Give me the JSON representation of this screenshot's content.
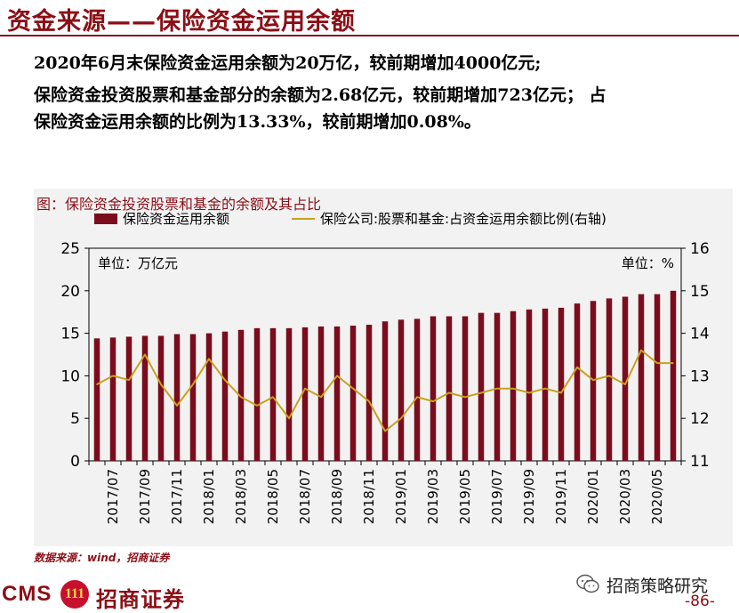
{
  "header": {
    "title": "资金来源——保险资金运用余额"
  },
  "summary": {
    "line1": "2020年6月末保险资金运用余额为20万亿，较前期增加4000亿元;",
    "line2": "保险资金投资股票和基金部分的余额为2.68亿元，较前期增加723亿元； 占",
    "line3": "保险资金运用余额的比例为13.33%，较前期增加0.08%。"
  },
  "chart_caption": "图：保险资金投资股票和基金的余额及其占比",
  "chart_data": {
    "type": "bar+line",
    "legend": {
      "bar_label": "保险资金运用余额",
      "line_label": "保险公司:股票和基金:占资金运用余额比例(右轴)",
      "position": "top"
    },
    "left_unit": "单位：万亿元",
    "right_unit": "单位：%",
    "left_axis": {
      "min": 0,
      "max": 25,
      "ticks": [
        "0",
        "5",
        "10",
        "15",
        "20",
        "25"
      ]
    },
    "right_axis": {
      "min": 11,
      "max": 16,
      "ticks": [
        "11",
        "12",
        "13",
        "14",
        "15",
        "16"
      ]
    },
    "x_tick_labels": [
      "2017/07",
      "2017/09",
      "2017/11",
      "2018/01",
      "2018/03",
      "2018/05",
      "2018/07",
      "2018/09",
      "2018/11",
      "2019/01",
      "2019/03",
      "2019/05",
      "2019/07",
      "2019/09",
      "2019/11",
      "2020/01",
      "2020/03",
      "2020/05"
    ],
    "categories": [
      "2017/06",
      "2017/07",
      "2017/08",
      "2017/09",
      "2017/10",
      "2017/11",
      "2017/12",
      "2018/01",
      "2018/02",
      "2018/03",
      "2018/04",
      "2018/05",
      "2018/06",
      "2018/07",
      "2018/08",
      "2018/09",
      "2018/10",
      "2018/11",
      "2018/12",
      "2019/01",
      "2019/02",
      "2019/03",
      "2019/04",
      "2019/05",
      "2019/06",
      "2019/07",
      "2019/08",
      "2019/09",
      "2019/10",
      "2019/11",
      "2019/12",
      "2020/01",
      "2020/02",
      "2020/03",
      "2020/04",
      "2020/05",
      "2020/06"
    ],
    "series": [
      {
        "name": "保险资金运用余额",
        "axis": "left",
        "type": "bar",
        "color": "#7a0c1c",
        "values": [
          14.4,
          14.5,
          14.6,
          14.7,
          14.7,
          14.9,
          14.9,
          15.0,
          15.2,
          15.4,
          15.6,
          15.6,
          15.6,
          15.7,
          15.8,
          15.8,
          15.9,
          16.0,
          16.4,
          16.6,
          16.7,
          17.0,
          17.0,
          17.0,
          17.4,
          17.4,
          17.6,
          17.8,
          17.9,
          18.0,
          18.5,
          18.8,
          19.1,
          19.3,
          19.6,
          19.6,
          20.0
        ]
      },
      {
        "name": "保险公司:股票和基金:占资金运用余额比例(右轴)",
        "axis": "right",
        "type": "line",
        "color": "#c9a020",
        "values": [
          12.8,
          13.0,
          12.9,
          13.5,
          12.8,
          12.3,
          12.8,
          13.4,
          12.9,
          12.5,
          12.3,
          12.5,
          12.0,
          12.7,
          12.5,
          13.0,
          12.7,
          12.4,
          11.7,
          12.0,
          12.5,
          12.4,
          12.6,
          12.5,
          12.6,
          12.7,
          12.7,
          12.6,
          12.7,
          12.6,
          13.2,
          12.9,
          13.0,
          12.8,
          13.6,
          13.3,
          13.3
        ]
      }
    ]
  },
  "source": "数据来源：wind，招商证券",
  "footer": {
    "logo_cms": "CMS",
    "logo_mark": "111",
    "logo_name": "招商证券",
    "wechat_label": "招商策略研究",
    "page_number": "-86-"
  }
}
